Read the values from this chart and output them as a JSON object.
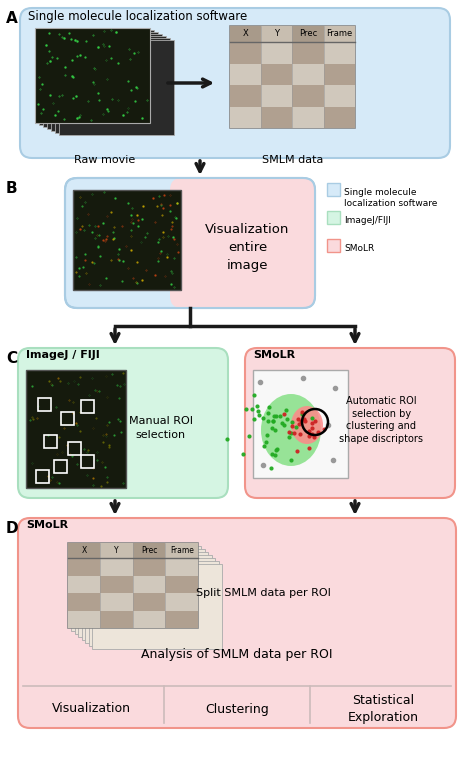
{
  "bg_color": "#ffffff",
  "light_blue": "#d6eaf8",
  "light_green": "#d5f5e3",
  "light_pink": "#fadadd",
  "box_edge_blue": "#a9cce3",
  "box_edge_green": "#a9dfbf",
  "box_edge_pink": "#f1948a",
  "arrow_color": "#1a1a1a",
  "label_A": "A",
  "label_B": "B",
  "label_C": "C",
  "label_D": "D",
  "sec_A_title": "Single molecule localization software",
  "sec_A_raw": "Raw movie",
  "sec_A_smlm": "SMLM data",
  "sec_B_text": "Visualization\nentire\nimage",
  "sec_C_left_title": "ImageJ / FIJI",
  "sec_C_left_text": "Manual ROI\nselection",
  "sec_C_right_title": "SMoLR",
  "sec_C_right_text": "Automatic ROI\nselection by\nclustering and\nshape discriptors",
  "sec_D_title": "SMoLR",
  "sec_D_text": "Split SMLM data per ROI",
  "sec_D_sub": "Analysis of SMLM data per ROI",
  "bottom_labels": [
    "Visualization",
    "Clustering",
    "Statistical\nExploration"
  ],
  "legend_items": [
    {
      "color": "#d6eaf8",
      "edge": "#a9cce3",
      "label": "Single molecule\nlocalization software"
    },
    {
      "color": "#d5f5e3",
      "edge": "#a9dfbf",
      "label": "ImageJ/FIJI"
    },
    {
      "color": "#fadadd",
      "edge": "#f1948a",
      "label": "SMoLR"
    }
  ],
  "table_headers": [
    "X",
    "Y",
    "Prec",
    "Frame"
  ],
  "table_col_dark": "#a89a8a",
  "table_col_light": "#c8beb0",
  "table_row_dark": "#b0a090",
  "table_row_light": "#d0c8bc"
}
